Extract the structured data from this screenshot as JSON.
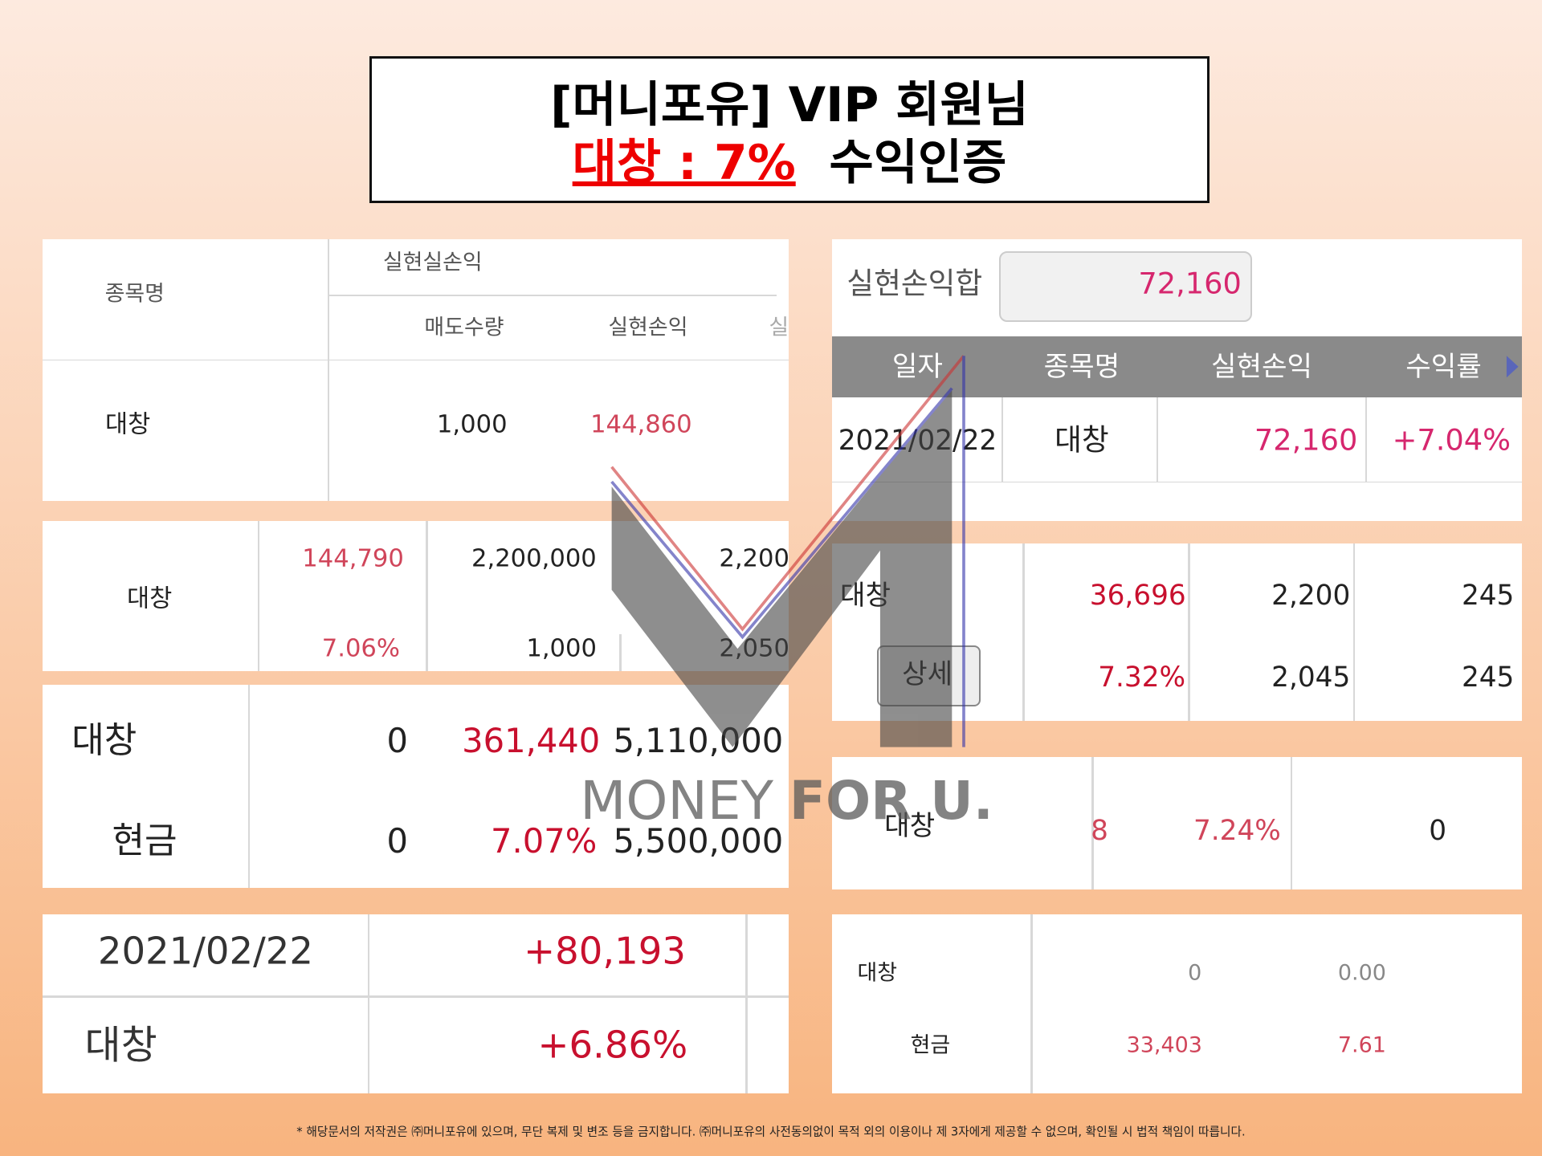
{
  "header": {
    "line1": "[머니포유] VIP 회원님",
    "highlight": "대창 : 7%",
    "rest": "수익인증"
  },
  "left_panels": [
    {
      "header": [
        "종목명",
        "실현실손익",
        "매도수량",
        "실현손익",
        "실"
      ],
      "rows": [
        [
          "대창",
          "1,000",
          "144,860"
        ]
      ]
    },
    {
      "rows": [
        [
          "대창",
          "144,790",
          "2,200,000",
          "2,200"
        ],
        [
          "7.06%",
          "1,000",
          "2,050"
        ]
      ]
    },
    {
      "rows": [
        [
          "대창",
          "0",
          "361,440",
          "5,110,000"
        ],
        [
          "현금",
          "0",
          "7.07%",
          "5,500,000"
        ]
      ]
    },
    {
      "rows": [
        [
          "2021/02/22",
          "+80,193"
        ],
        [
          "대창",
          "+6.86%"
        ]
      ]
    }
  ],
  "right_panels": [
    {
      "summary_label": "실현손익합",
      "summary_value": "72,160",
      "header": [
        "일자",
        "종목명",
        "실현손익",
        "수익률"
      ],
      "rows": [
        [
          "2021/02/22",
          "대창",
          "72,160",
          "+7.04%"
        ]
      ]
    },
    {
      "rows": [
        [
          "대창",
          "36,696",
          "2,200",
          "245"
        ],
        [
          "7.32%",
          "2,045",
          "245"
        ]
      ],
      "button": "상세"
    },
    {
      "rows": [
        [
          "대창",
          "8",
          "7.24%",
          "0"
        ]
      ]
    },
    {
      "rows": [
        [
          "대창",
          "0",
          "0.00"
        ],
        [
          "현금",
          "33,403",
          "7.61"
        ]
      ]
    }
  ],
  "watermark": {
    "light": "MONEY",
    "bold": "FOR U."
  },
  "footer": "* 해당문서의 저작권은 ㈜머니포유에 있으며, 무단 복제 및 변조 등을 금지합니다. ㈜머니포유의 사전동의없이 목적 외의 이용이나 제 3자에게 제공할 수 없으며, 확인될 시 법적 책임이 따릅니다."
}
